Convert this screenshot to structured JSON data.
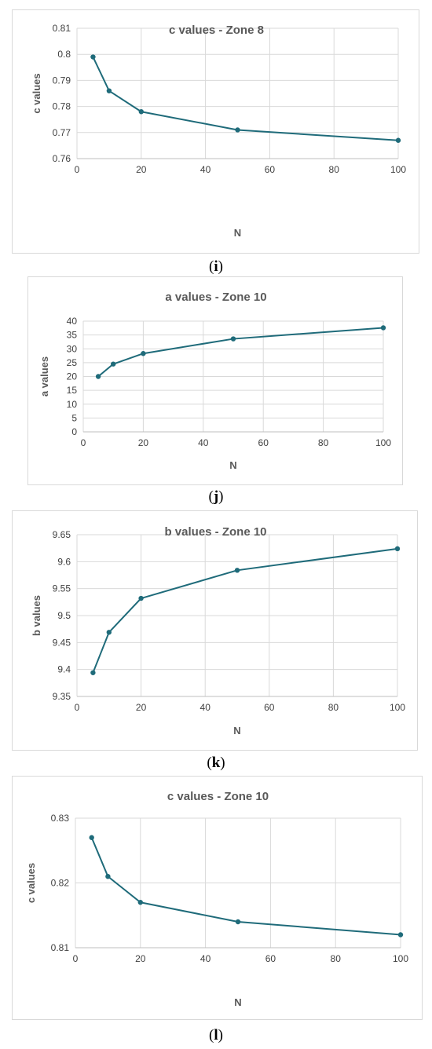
{
  "chart_data": [
    {
      "type": "line",
      "title": "c values - Zone 8",
      "xlabel": "N",
      "ylabel": "c values",
      "x": [
        5,
        10,
        20,
        50,
        100
      ],
      "series": [
        {
          "values": [
            0.799,
            0.786,
            0.778,
            0.771,
            0.767
          ]
        }
      ],
      "xlim": [
        0,
        100
      ],
      "ylim": [
        0.76,
        0.81
      ],
      "xticks": [
        "0",
        "20",
        "40",
        "60",
        "80",
        "100"
      ],
      "yticks": [
        "0.76",
        "0.77",
        "0.78",
        "0.79",
        "0.8",
        "0.81"
      ],
      "grid": true,
      "color": "#1f6b7a",
      "caption": {
        "open": "(",
        "letter": "i",
        "close": ")"
      }
    },
    {
      "type": "line",
      "title": "a values - Zone 10",
      "xlabel": "N",
      "ylabel": "a values",
      "x": [
        5,
        10,
        20,
        50,
        100
      ],
      "series": [
        {
          "values": [
            20,
            24.5,
            28.3,
            33.6,
            37.6
          ]
        }
      ],
      "xlim": [
        0,
        100
      ],
      "ylim": [
        0,
        40
      ],
      "xticks": [
        "0",
        "20",
        "40",
        "60",
        "80",
        "100"
      ],
      "yticks": [
        "0",
        "5",
        "10",
        "15",
        "20",
        "25",
        "30",
        "35",
        "40"
      ],
      "grid": true,
      "color": "#1f6b7a",
      "caption": {
        "open": "(",
        "letter": "j",
        "close": ")"
      }
    },
    {
      "type": "line",
      "title": "b values - Zone 10",
      "xlabel": "N",
      "ylabel": "b values",
      "x": [
        5,
        10,
        20,
        50,
        100
      ],
      "series": [
        {
          "values": [
            9.394,
            9.469,
            9.532,
            9.584,
            9.624
          ]
        }
      ],
      "xlim": [
        0,
        100
      ],
      "ylim": [
        9.35,
        9.65
      ],
      "xticks": [
        "0",
        "20",
        "40",
        "60",
        "80",
        "100"
      ],
      "yticks": [
        "9.35",
        "9.4",
        "9.45",
        "9.5",
        "9.55",
        "9.6",
        "9.65"
      ],
      "grid": true,
      "color": "#1f6b7a",
      "caption": {
        "open": "(",
        "letter": "k",
        "close": ")"
      }
    },
    {
      "type": "line",
      "title": "c values - Zone 10",
      "xlabel": "N",
      "ylabel": "c values",
      "x": [
        5,
        10,
        20,
        50,
        100
      ],
      "series": [
        {
          "values": [
            0.827,
            0.821,
            0.817,
            0.814,
            0.812
          ]
        }
      ],
      "xlim": [
        0,
        100
      ],
      "ylim": [
        0.81,
        0.83
      ],
      "xticks": [
        "0",
        "20",
        "40",
        "60",
        "80",
        "100"
      ],
      "yticks": [
        "0.81",
        "0.82",
        "0.83"
      ],
      "grid": true,
      "color": "#1f6b7a",
      "caption": {
        "open": "(",
        "letter": "l",
        "close": ")"
      }
    }
  ]
}
